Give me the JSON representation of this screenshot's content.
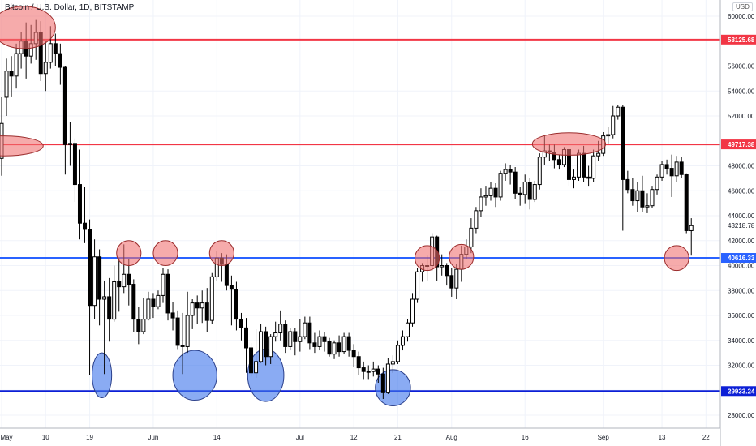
{
  "chart_data": {
    "type": "candlestick",
    "title": "Bitcoin / U.S. Dollar, 1D, BITSTAMP",
    "currency_label": "USD",
    "ylim": [
      26500,
      61500
    ],
    "y_ticks": [
      {
        "label": "28000.00",
        "value": 28000
      },
      {
        "label": "30000.00",
        "value": 30000
      },
      {
        "label": "32000.00",
        "value": 32000
      },
      {
        "label": "34000.00",
        "value": 34000
      },
      {
        "label": "36000.00",
        "value": 36000
      },
      {
        "label": "38000.00",
        "value": 38000
      },
      {
        "label": "40000.00",
        "value": 40000
      },
      {
        "label": "42000.00",
        "value": 42000
      },
      {
        "label": "44000.00",
        "value": 44000
      },
      {
        "label": "46000.00",
        "value": 46000
      },
      {
        "label": "48000.00",
        "value": 48000
      },
      {
        "label": "52000.00",
        "value": 52000
      },
      {
        "label": "54000.00",
        "value": 54000
      },
      {
        "label": "56000.00",
        "value": 56000
      },
      {
        "label": "60000.00",
        "value": 60000
      }
    ],
    "x_ticks": [
      {
        "label": "May",
        "day": 0
      },
      {
        "label": "10",
        "day": 9
      },
      {
        "label": "19",
        "day": 18
      },
      {
        "label": "Jun",
        "day": 31
      },
      {
        "label": "14",
        "day": 44
      },
      {
        "label": "Jul",
        "day": 61
      },
      {
        "label": "12",
        "day": 72
      },
      {
        "label": "21",
        "day": 81
      },
      {
        "label": "Aug",
        "day": 92
      },
      {
        "label": "16",
        "day": 107
      },
      {
        "label": "Sep",
        "day": 123
      },
      {
        "label": "13",
        "day": 135
      },
      {
        "label": "22",
        "day": 144
      }
    ],
    "horizontal_levels": [
      {
        "label": "58125.68",
        "value": 58125.68,
        "color": "#f23645"
      },
      {
        "label": "49717.38",
        "value": 49717.38,
        "color": "#f23645"
      },
      {
        "label": "40616.33",
        "value": 40616.33,
        "color": "#2962ff"
      },
      {
        "label": "29933.24",
        "value": 29933.24,
        "color": "#0c1fd6"
      }
    ],
    "last_price": {
      "label": "43218.78",
      "value": 43218.78
    },
    "zones": [
      {
        "day": 4.5,
        "value": 59100,
        "rx_days": 6.5,
        "ry_value": 1700,
        "kind": "resistance"
      },
      {
        "day": 0.5,
        "value": 49600,
        "rx_days": 8,
        "ry_value": 800,
        "kind": "resistance"
      },
      {
        "day": 116,
        "value": 49750,
        "rx_days": 7.5,
        "ry_value": 900,
        "kind": "resistance"
      },
      {
        "day": 26,
        "value": 41000,
        "rx_days": 2.5,
        "ry_value": 1000,
        "kind": "resistance"
      },
      {
        "day": 33.5,
        "value": 41000,
        "rx_days": 2.5,
        "ry_value": 1000,
        "kind": "resistance"
      },
      {
        "day": 45,
        "value": 41000,
        "rx_days": 2.5,
        "ry_value": 1000,
        "kind": "resistance"
      },
      {
        "day": 87,
        "value": 40600,
        "rx_days": 2.5,
        "ry_value": 1000,
        "kind": "resistance"
      },
      {
        "day": 94,
        "value": 40700,
        "rx_days": 2.5,
        "ry_value": 1000,
        "kind": "resistance"
      },
      {
        "day": 138,
        "value": 40600,
        "rx_days": 2.5,
        "ry_value": 1000,
        "kind": "resistance"
      },
      {
        "day": 20.5,
        "value": 31200,
        "rx_days": 2,
        "ry_value": 1800,
        "kind": "support"
      },
      {
        "day": 39.5,
        "value": 31200,
        "rx_days": 4.5,
        "ry_value": 2000,
        "kind": "support"
      },
      {
        "day": 54,
        "value": 31200,
        "rx_days": 3.7,
        "ry_value": 2100,
        "kind": "support"
      },
      {
        "day": 80,
        "value": 30200,
        "rx_days": 3.6,
        "ry_value": 1450,
        "kind": "support"
      }
    ],
    "candles": [
      [
        48600,
        51400,
        47200,
        53500
      ],
      [
        53500,
        55600,
        52000,
        56600
      ],
      [
        55600,
        55200,
        53500,
        56800
      ],
      [
        55200,
        57000,
        54200,
        57800
      ],
      [
        57000,
        58000,
        55800,
        58700
      ],
      [
        58000,
        56800,
        55000,
        59500
      ],
      [
        56800,
        57800,
        56200,
        59300
      ],
      [
        57800,
        58700,
        56500,
        59700
      ],
      [
        58700,
        55400,
        54800,
        59600
      ],
      [
        55400,
        56300,
        54000,
        58000
      ],
      [
        56300,
        57800,
        55800,
        59200
      ],
      [
        57800,
        57000,
        56000,
        58600
      ],
      [
        57000,
        55900,
        54500,
        57800
      ],
      [
        55900,
        49700,
        47300,
        56000
      ],
      [
        49700,
        49800,
        48000,
        51500
      ],
      [
        49800,
        46500,
        45100,
        50200
      ],
      [
        46500,
        43400,
        42100,
        49300
      ],
      [
        43400,
        42900,
        41800,
        46300
      ],
      [
        42900,
        36800,
        31200,
        43700
      ],
      [
        36800,
        40700,
        35700,
        42100
      ],
      [
        40700,
        37300,
        35200,
        41300
      ],
      [
        37300,
        37500,
        31300,
        38800
      ],
      [
        37500,
        35700,
        33900,
        39000
      ],
      [
        35700,
        38700,
        35500,
        40000
      ],
      [
        38700,
        38300,
        36300,
        40600
      ],
      [
        38300,
        39300,
        37800,
        41700
      ],
      [
        39300,
        38500,
        36800,
        40500
      ],
      [
        38500,
        35700,
        34700,
        38900
      ],
      [
        35700,
        34700,
        33700,
        36700
      ],
      [
        34700,
        35700,
        34500,
        37400
      ],
      [
        35700,
        37300,
        35600,
        37900
      ],
      [
        37300,
        36700,
        35800,
        37800
      ],
      [
        36700,
        37600,
        36500,
        38000
      ],
      [
        37600,
        39300,
        37000,
        39800
      ],
      [
        39300,
        36200,
        35600,
        39700
      ],
      [
        36200,
        35800,
        34800,
        37100
      ],
      [
        35800,
        33600,
        33300,
        36400
      ],
      [
        33600,
        33500,
        31300,
        36200
      ],
      [
        33500,
        36000,
        33000,
        37900
      ],
      [
        36000,
        37000,
        34900,
        37300
      ],
      [
        37000,
        36600,
        35300,
        37600
      ],
      [
        36600,
        37000,
        35400,
        38000
      ],
      [
        37000,
        35600,
        34700,
        38200
      ],
      [
        35600,
        39100,
        35300,
        39400
      ],
      [
        39100,
        40600,
        38800,
        41200
      ],
      [
        40600,
        40100,
        38700,
        41000
      ],
      [
        40100,
        38400,
        38000,
        40900
      ],
      [
        38400,
        38100,
        35200,
        39200
      ],
      [
        38100,
        35700,
        34800,
        38700
      ],
      [
        35700,
        35000,
        34000,
        36200
      ],
      [
        35000,
        33400,
        31400,
        35800
      ],
      [
        33400,
        31400,
        31100,
        33800
      ],
      [
        31400,
        32300,
        31000,
        34900
      ],
      [
        32300,
        34700,
        32200,
        35300
      ],
      [
        34700,
        32700,
        32000,
        35100
      ],
      [
        32700,
        34300,
        32100,
        34500
      ],
      [
        34300,
        34600,
        33900,
        35500
      ],
      [
        34600,
        35300,
        34000,
        36400
      ],
      [
        35300,
        33500,
        33000,
        35600
      ],
      [
        33500,
        34700,
        33200,
        35000
      ],
      [
        34700,
        33900,
        32800,
        35000
      ],
      [
        33900,
        34300,
        33100,
        35700
      ],
      [
        34300,
        35400,
        34100,
        35900
      ],
      [
        35400,
        33800,
        33300,
        35900
      ],
      [
        33800,
        33500,
        33000,
        34600
      ],
      [
        33500,
        34300,
        33200,
        34800
      ],
      [
        34300,
        33900,
        33100,
        34700
      ],
      [
        33900,
        32900,
        32700,
        34200
      ],
      [
        32900,
        33800,
        32500,
        34000
      ],
      [
        33800,
        33100,
        32700,
        34400
      ],
      [
        33100,
        34300,
        32900,
        34600
      ],
      [
        34300,
        33200,
        32700,
        34600
      ],
      [
        33200,
        32700,
        31900,
        33700
      ],
      [
        32700,
        31800,
        31200,
        33100
      ],
      [
        31800,
        31500,
        30900,
        32300
      ],
      [
        31500,
        31500,
        30900,
        32000
      ],
      [
        31500,
        31700,
        31100,
        32300
      ],
      [
        31700,
        31300,
        30600,
        32000
      ],
      [
        31300,
        29800,
        29300,
        31800
      ],
      [
        29800,
        32100,
        29700,
        32600
      ],
      [
        32100,
        32300,
        31400,
        32800
      ],
      [
        32300,
        33600,
        32100,
        34000
      ],
      [
        33600,
        34300,
        33200,
        34800
      ],
      [
        34300,
        35400,
        33900,
        35700
      ],
      [
        35400,
        37300,
        35100,
        37800
      ],
      [
        37300,
        39500,
        37000,
        39800
      ],
      [
        39500,
        40000,
        38700,
        40200
      ],
      [
        40000,
        40000,
        38800,
        40800
      ],
      [
        40000,
        42300,
        39600,
        42600
      ],
      [
        42300,
        39900,
        38800,
        42400
      ],
      [
        39900,
        40000,
        39200,
        40900
      ],
      [
        40000,
        39200,
        38400,
        40200
      ],
      [
        39200,
        38200,
        37500,
        39800
      ],
      [
        38200,
        39700,
        37300,
        40100
      ],
      [
        39700,
        40900,
        38700,
        41600
      ],
      [
        40900,
        41500,
        40500,
        42100
      ],
      [
        41500,
        43000,
        41000,
        43800
      ],
      [
        43000,
        44400,
        42600,
        44700
      ],
      [
        44400,
        45500,
        43900,
        46200
      ],
      [
        45500,
        45600,
        44800,
        46400
      ],
      [
        45600,
        46200,
        45200,
        46700
      ],
      [
        46200,
        45500,
        44700,
        46600
      ],
      [
        45500,
        47400,
        45200,
        47600
      ],
      [
        47400,
        47700,
        46800,
        48200
      ],
      [
        47700,
        47500,
        46500,
        48100
      ],
      [
        47500,
        45800,
        45300,
        47900
      ],
      [
        45800,
        45700,
        44800,
        46300
      ],
      [
        45700,
        46700,
        45000,
        47300
      ],
      [
        46700,
        45300,
        44500,
        47000
      ],
      [
        45300,
        46500,
        45100,
        46800
      ],
      [
        46500,
        48700,
        46100,
        49000
      ],
      [
        48700,
        49200,
        48100,
        50500
      ],
      [
        49200,
        49100,
        48400,
        49700
      ],
      [
        49100,
        48500,
        47800,
        49700
      ],
      [
        48500,
        48100,
        47700,
        48900
      ],
      [
        48100,
        49300,
        47900,
        49500
      ],
      [
        49300,
        46900,
        46400,
        49400
      ],
      [
        46900,
        47100,
        46200,
        47700
      ],
      [
        47100,
        49000,
        46800,
        49300
      ],
      [
        49000,
        47100,
        46700,
        49600
      ],
      [
        47100,
        47000,
        46400,
        48000
      ],
      [
        47000,
        48800,
        46700,
        49300
      ],
      [
        48800,
        49000,
        48400,
        50000
      ],
      [
        49000,
        50400,
        48800,
        50700
      ],
      [
        50400,
        50500,
        49800,
        51100
      ],
      [
        50500,
        52000,
        50200,
        52800
      ],
      [
        52000,
        52700,
        51700,
        52900
      ],
      [
        52700,
        46900,
        42800,
        52900
      ],
      [
        46900,
        46100,
        45800,
        47600
      ],
      [
        46100,
        45200,
        44800,
        47000
      ],
      [
        45200,
        46000,
        44300,
        46700
      ],
      [
        46000,
        44700,
        44300,
        47200
      ],
      [
        44700,
        44800,
        44200,
        45800
      ],
      [
        44800,
        46100,
        44600,
        46400
      ],
      [
        46100,
        47100,
        45700,
        47300
      ],
      [
        47100,
        48100,
        46800,
        48400
      ],
      [
        48100,
        47800,
        47300,
        48500
      ],
      [
        47800,
        47200,
        45500,
        48900
      ],
      [
        47200,
        48300,
        46700,
        48800
      ],
      [
        48300,
        47300,
        47000,
        48700
      ],
      [
        47300,
        42800,
        42600,
        47400
      ],
      [
        42800,
        43200,
        40800,
        43800
      ]
    ]
  }
}
